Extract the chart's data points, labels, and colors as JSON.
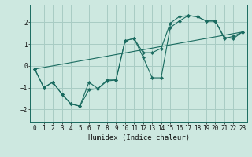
{
  "xlabel": "Humidex (Indice chaleur)",
  "background_color": "#cde8e0",
  "grid_color": "#a8ccc4",
  "line_color": "#1a6b60",
  "xlim": [
    -0.5,
    23.5
  ],
  "ylim": [
    -2.6,
    2.8
  ],
  "yticks": [
    -2,
    -1,
    0,
    1,
    2
  ],
  "xticks": [
    0,
    1,
    2,
    3,
    4,
    5,
    6,
    7,
    8,
    9,
    10,
    11,
    12,
    13,
    14,
    15,
    16,
    17,
    18,
    19,
    20,
    21,
    22,
    23
  ],
  "line1_x": [
    0,
    1,
    2,
    3,
    4,
    5,
    6,
    7,
    8,
    9,
    10,
    11,
    12,
    13,
    14,
    15,
    16,
    17,
    18,
    19,
    20,
    21,
    22,
    23
  ],
  "line1_y": [
    -0.15,
    -1.0,
    -0.75,
    -1.3,
    -1.75,
    -1.85,
    -1.1,
    -1.05,
    -0.7,
    -0.65,
    1.15,
    1.25,
    0.4,
    -0.55,
    -0.55,
    1.75,
    2.05,
    2.3,
    2.25,
    2.05,
    2.05,
    1.3,
    1.25,
    1.55
  ],
  "line2_x": [
    0,
    1,
    2,
    3,
    4,
    5,
    6,
    7,
    8,
    9,
    10,
    11,
    12,
    13,
    14,
    15,
    16,
    17,
    18,
    19,
    20,
    21,
    22,
    23
  ],
  "line2_y": [
    -0.15,
    -1.0,
    -0.75,
    -1.3,
    -1.75,
    -1.85,
    -0.75,
    -1.05,
    -0.65,
    -0.65,
    1.15,
    1.25,
    0.6,
    0.6,
    0.8,
    1.95,
    2.25,
    2.3,
    2.25,
    2.05,
    2.05,
    1.25,
    1.35,
    1.55
  ],
  "line3_x": [
    0,
    23
  ],
  "line3_y": [
    -0.15,
    1.55
  ]
}
